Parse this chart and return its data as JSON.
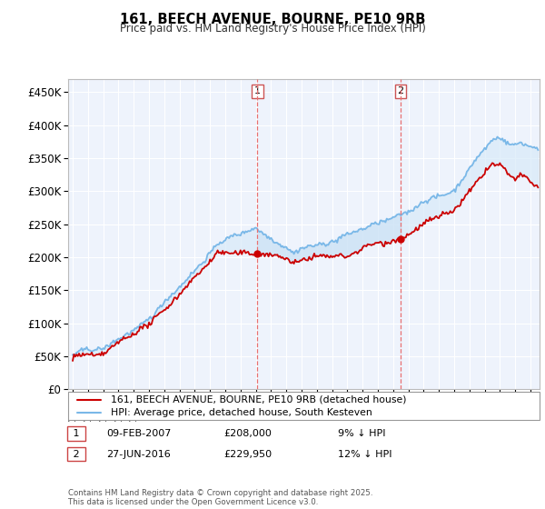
{
  "title": "161, BEECH AVENUE, BOURNE, PE10 9RB",
  "subtitle": "Price paid vs. HM Land Registry's House Price Index (HPI)",
  "ylabel_ticks": [
    "£0",
    "£50K",
    "£100K",
    "£150K",
    "£200K",
    "£250K",
    "£300K",
    "£350K",
    "£400K",
    "£450K"
  ],
  "ytick_values": [
    0,
    50000,
    100000,
    150000,
    200000,
    250000,
    300000,
    350000,
    400000,
    450000
  ],
  "ylim": [
    0,
    470000
  ],
  "xlim_start": 1994.7,
  "xlim_end": 2025.6,
  "sale1_date": 2007.1,
  "sale1_price": 208000,
  "sale1_label": "1",
  "sale2_date": 2016.5,
  "sale2_price": 229950,
  "sale2_label": "2",
  "hpi_color": "#7ab8e8",
  "price_color": "#cc0000",
  "vline_color": "#e87070",
  "fill_color": "#d8eaf8",
  "background_color": "#eef3fc",
  "grid_color": "#ffffff",
  "legend_label_price": "161, BEECH AVENUE, BOURNE, PE10 9RB (detached house)",
  "legend_label_hpi": "HPI: Average price, detached house, South Kesteven",
  "note1_num": "1",
  "note1_date": "09-FEB-2007",
  "note1_price": "£208,000",
  "note1_pct": "9% ↓ HPI",
  "note2_num": "2",
  "note2_date": "27-JUN-2016",
  "note2_price": "£229,950",
  "note2_pct": "12% ↓ HPI",
  "footer": "Contains HM Land Registry data © Crown copyright and database right 2025.\nThis data is licensed under the Open Government Licence v3.0."
}
